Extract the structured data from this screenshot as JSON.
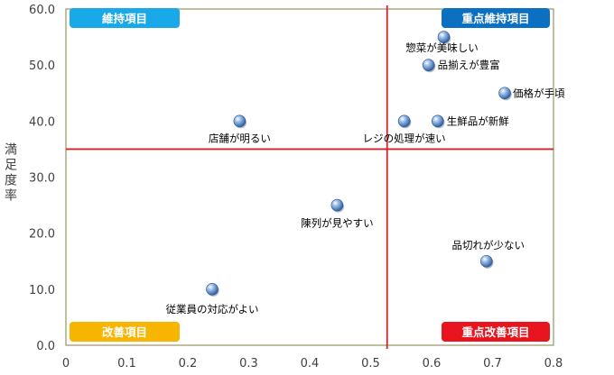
{
  "chart_data": {
    "type": "scatter",
    "title": "",
    "xlabel": "",
    "ylabel": "満足度率",
    "xlim": [
      0,
      0.8
    ],
    "ylim": [
      0,
      60
    ],
    "x_ticks": [
      "0",
      "0.1",
      "0.2",
      "0.3",
      "0.4",
      "0.5",
      "0.6",
      "0.7",
      "0.8"
    ],
    "y_ticks": [
      "0.0",
      "10.0",
      "20.0",
      "30.0",
      "40.0",
      "50.0",
      "60.0"
    ],
    "divider_x": 0.527,
    "divider_y": 35,
    "points": [
      {
        "label": "惣菜が美味しい",
        "x": 0.62,
        "y": 55
      },
      {
        "label": "品揃えが豊富",
        "x": 0.595,
        "y": 50
      },
      {
        "label": "価格が手頃",
        "x": 0.72,
        "y": 45
      },
      {
        "label": "店舗が明るい",
        "x": 0.285,
        "y": 40
      },
      {
        "label": "レジの処理が速い",
        "x": 0.555,
        "y": 40
      },
      {
        "label": "生鮮品が新鮮",
        "x": 0.61,
        "y": 40
      },
      {
        "label": "陳列が見やすい",
        "x": 0.445,
        "y": 25
      },
      {
        "label": "品切れが少ない",
        "x": 0.69,
        "y": 15
      },
      {
        "label": "従業員の対応がよい",
        "x": 0.24,
        "y": 10
      }
    ],
    "quadrants": [
      {
        "label": "維持項目",
        "position": "top-left",
        "color": "#1aa9e8"
      },
      {
        "label": "重点維持項目",
        "position": "top-right",
        "color": "#0b6fc2"
      },
      {
        "label": "改善項目",
        "position": "bottom-left",
        "color": "#f7b500"
      },
      {
        "label": "重点改善項目",
        "position": "bottom-right",
        "color": "#e8141e"
      }
    ],
    "colors": {
      "divider": "#d4202a",
      "frame": "#a09a70",
      "marker": "#4a7fc1"
    },
    "grid": false,
    "legend": "none"
  }
}
